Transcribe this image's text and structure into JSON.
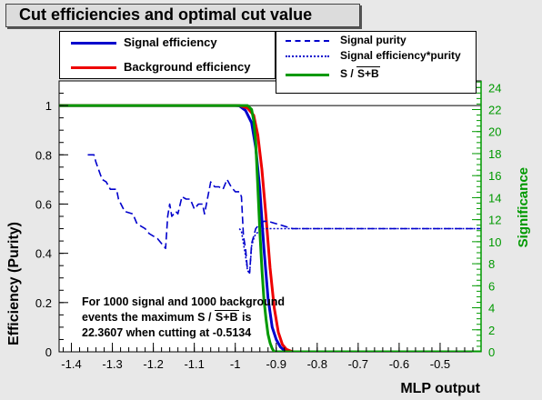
{
  "window": {
    "title": "Cut efficiencies and optimal cut value"
  },
  "legend": {
    "left": [
      {
        "label": "Signal efficiency",
        "style": "solid",
        "color": "#0000cc"
      },
      {
        "label": "Background efficiency",
        "style": "solid",
        "color": "#ee0000"
      }
    ],
    "right": [
      {
        "label": "Signal purity",
        "style": "dashed",
        "color": "#0000cc"
      },
      {
        "label": "Signal efficiency*purity",
        "style": "dotted",
        "color": "#0000cc"
      },
      {
        "label_prefix": "S / ",
        "label_root": "S+B",
        "style": "solid",
        "color": "#009900"
      }
    ]
  },
  "note": {
    "line1": "For 1000 signal and 1000 background",
    "line2_prefix": "events the maximum S / ",
    "line2_root": "S+B",
    "line2_suffix": " is",
    "line3": "22.3607 when cutting at -0.5134"
  },
  "chart_data": {
    "type": "line",
    "xlabel": "MLP output",
    "ylabel": "Efficiency (Purity)",
    "y2label": "Significance",
    "xlim": [
      -1.43,
      -0.4
    ],
    "ylim": [
      0,
      1.1
    ],
    "y2lim": [
      0,
      24.6
    ],
    "xticks": [
      -1.4,
      -1.3,
      -1.2,
      -1.1,
      -1.0,
      -0.9,
      -0.8,
      -0.7,
      -0.6,
      -0.5
    ],
    "xtick_labels": [
      "-1.4",
      "-1.3",
      "-1.2",
      "-1.1",
      "-1",
      "-0.9",
      "-0.8",
      "-0.7",
      "-0.6",
      "-0.5"
    ],
    "yticks": [
      0,
      0.2,
      0.4,
      0.6,
      0.8,
      1
    ],
    "ytick_labels": [
      "0",
      "0.2",
      "0.4",
      "0.6",
      "0.8",
      "1"
    ],
    "y2ticks": [
      0,
      2,
      4,
      6,
      8,
      10,
      12,
      14,
      16,
      18,
      20,
      22,
      24
    ],
    "y2tick_labels": [
      "0",
      "2",
      "4",
      "6",
      "8",
      "10",
      "12",
      "14",
      "16",
      "18",
      "20",
      "22",
      "24"
    ],
    "series": [
      {
        "name": "Signal efficiency",
        "axis": "left",
        "color": "#0000cc",
        "dash": "",
        "points": [
          [
            -1.43,
            1
          ],
          [
            -1.0,
            1
          ],
          [
            -0.99,
            0.999
          ],
          [
            -0.975,
            0.98
          ],
          [
            -0.96,
            0.93
          ],
          [
            -0.95,
            0.83
          ],
          [
            -0.94,
            0.66
          ],
          [
            -0.93,
            0.42
          ],
          [
            -0.92,
            0.22
          ],
          [
            -0.91,
            0.1
          ],
          [
            -0.9,
            0.05
          ],
          [
            -0.89,
            0.02
          ],
          [
            -0.88,
            0.005
          ],
          [
            -0.87,
            0
          ],
          [
            -0.4,
            0
          ]
        ]
      },
      {
        "name": "Background efficiency",
        "axis": "left",
        "color": "#ee0000",
        "dash": "",
        "points": [
          [
            -1.43,
            1
          ],
          [
            -0.99,
            1
          ],
          [
            -0.97,
            0.99
          ],
          [
            -0.955,
            0.96
          ],
          [
            -0.945,
            0.88
          ],
          [
            -0.935,
            0.74
          ],
          [
            -0.925,
            0.55
          ],
          [
            -0.915,
            0.34
          ],
          [
            -0.905,
            0.18
          ],
          [
            -0.895,
            0.08
          ],
          [
            -0.885,
            0.03
          ],
          [
            -0.875,
            0.01
          ],
          [
            -0.86,
            0
          ],
          [
            -0.4,
            0
          ]
        ]
      },
      {
        "name": "Signal purity",
        "axis": "left",
        "color": "#0000cc",
        "dash": "8,4",
        "points": [
          [
            -1.36,
            0.8
          ],
          [
            -1.345,
            0.8
          ],
          [
            -1.34,
            0.77
          ],
          [
            -1.325,
            0.7
          ],
          [
            -1.315,
            0.69
          ],
          [
            -1.305,
            0.66
          ],
          [
            -1.29,
            0.66
          ],
          [
            -1.285,
            0.62
          ],
          [
            -1.27,
            0.57
          ],
          [
            -1.25,
            0.56
          ],
          [
            -1.24,
            0.52
          ],
          [
            -1.22,
            0.5
          ],
          [
            -1.21,
            0.48
          ],
          [
            -1.19,
            0.46
          ],
          [
            -1.17,
            0.42
          ],
          [
            -1.165,
            0.55
          ],
          [
            -1.16,
            0.6
          ],
          [
            -1.155,
            0.55
          ],
          [
            -1.145,
            0.57
          ],
          [
            -1.14,
            0.56
          ],
          [
            -1.13,
            0.63
          ],
          [
            -1.12,
            0.62
          ],
          [
            -1.11,
            0.62
          ],
          [
            -1.1,
            0.58
          ],
          [
            -1.09,
            0.6
          ],
          [
            -1.08,
            0.6
          ],
          [
            -1.075,
            0.56
          ],
          [
            -1.06,
            0.69
          ],
          [
            -1.05,
            0.67
          ],
          [
            -1.04,
            0.67
          ],
          [
            -1.03,
            0.66
          ],
          [
            -1.02,
            0.7
          ],
          [
            -1.01,
            0.67
          ],
          [
            -1.0,
            0.65
          ],
          [
            -0.99,
            0.65
          ],
          [
            -0.985,
            0.63
          ],
          [
            -0.98,
            0.47
          ],
          [
            -0.975,
            0.42
          ],
          [
            -0.97,
            0.33
          ],
          [
            -0.965,
            0.32
          ],
          [
            -0.96,
            0.44
          ],
          [
            -0.955,
            0.47
          ],
          [
            -0.95,
            0.5
          ],
          [
            -0.94,
            0.52
          ],
          [
            -0.93,
            0.53
          ],
          [
            -0.92,
            0.53
          ],
          [
            -0.9,
            0.52
          ],
          [
            -0.88,
            0.51
          ],
          [
            -0.86,
            0.5
          ],
          [
            -0.84,
            0.5
          ],
          [
            -0.4,
            0.5
          ]
        ]
      },
      {
        "name": "Signal efficiency*purity",
        "axis": "left",
        "color": "#0000cc",
        "dash": "2,2",
        "points": [
          [
            -0.99,
            0.5
          ],
          [
            -0.985,
            0.49
          ],
          [
            -0.98,
            0.44
          ],
          [
            -0.975,
            0.39
          ],
          [
            -0.97,
            0.33
          ],
          [
            -0.965,
            0.32
          ],
          [
            -0.96,
            0.43
          ],
          [
            -0.955,
            0.46
          ],
          [
            -0.95,
            0.48
          ],
          [
            -0.94,
            0.49
          ],
          [
            -0.93,
            0.5
          ],
          [
            -0.9,
            0.5
          ],
          [
            -0.88,
            0.5
          ],
          [
            -0.4,
            0.5
          ]
        ]
      },
      {
        "name": "S / √S+B",
        "axis": "right",
        "color": "#009900",
        "dash": "",
        "points": [
          [
            -1.43,
            22.36
          ],
          [
            -0.97,
            22.36
          ],
          [
            -0.96,
            22.0
          ],
          [
            -0.955,
            21.0
          ],
          [
            -0.95,
            19.0
          ],
          [
            -0.945,
            15.0
          ],
          [
            -0.94,
            11.0
          ],
          [
            -0.935,
            7.5
          ],
          [
            -0.93,
            4.8
          ],
          [
            -0.925,
            3.0
          ],
          [
            -0.92,
            1.6
          ],
          [
            -0.915,
            0.8
          ],
          [
            -0.91,
            0.3
          ],
          [
            -0.905,
            0
          ],
          [
            -0.4,
            0
          ]
        ]
      }
    ],
    "optimal_cut": -0.5134,
    "max_significance": 22.3607
  }
}
